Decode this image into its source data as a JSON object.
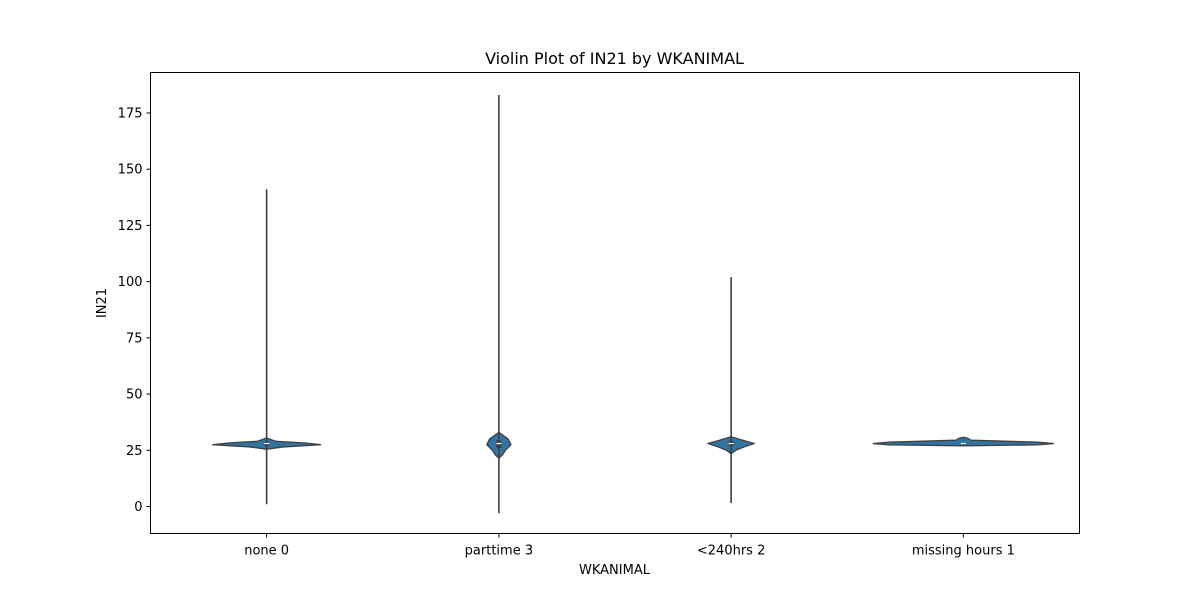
{
  "chart_data": {
    "type": "violin",
    "title": "Violin Plot of IN21 by WKANIMAL",
    "xlabel": "WKANIMAL",
    "ylabel": "IN21",
    "categories": [
      "none 0",
      "parttime 3",
      "<240hrs 2",
      "missing hours 1"
    ],
    "ylim": [
      -12,
      193
    ],
    "yticks": [
      0,
      25,
      50,
      75,
      100,
      125,
      150,
      175
    ],
    "grid": false,
    "color": "#3274a1",
    "outline_color": "#404040",
    "series": [
      {
        "category": "none 0",
        "min": 1,
        "max": 141,
        "q1": 27,
        "median": 28,
        "q3": 28.5,
        "density_profile": [
          {
            "y": 25.5,
            "w": 0.0
          },
          {
            "y": 26.5,
            "w": 0.18
          },
          {
            "y": 27.5,
            "w": 0.58
          },
          {
            "y": 28.3,
            "w": 0.4
          },
          {
            "y": 29.0,
            "w": 0.1
          },
          {
            "y": 30.5,
            "w": 0.0
          }
        ]
      },
      {
        "category": "parttime 3",
        "min": -3,
        "max": 183,
        "q1": 26,
        "median": 28,
        "q3": 29.5,
        "density_profile": [
          {
            "y": 21.5,
            "w": 0.0
          },
          {
            "y": 23.0,
            "w": 0.04
          },
          {
            "y": 25.0,
            "w": 0.07
          },
          {
            "y": 27.5,
            "w": 0.13
          },
          {
            "y": 30.0,
            "w": 0.1
          },
          {
            "y": 31.5,
            "w": 0.05
          },
          {
            "y": 33.0,
            "w": 0.0
          }
        ]
      },
      {
        "category": "<240hrs 2",
        "min": 1.5,
        "max": 102,
        "q1": 27,
        "median": 28,
        "q3": 29,
        "density_profile": [
          {
            "y": 23.5,
            "w": 0.0
          },
          {
            "y": 25.0,
            "w": 0.05
          },
          {
            "y": 26.5,
            "w": 0.14
          },
          {
            "y": 28.0,
            "w": 0.25
          },
          {
            "y": 29.5,
            "w": 0.12
          },
          {
            "y": 31.0,
            "w": 0.0
          }
        ]
      },
      {
        "category": "missing hours 1",
        "min": 28,
        "max": 28,
        "q1": 28,
        "median": 28,
        "q3": 28,
        "density_profile": [
          {
            "y": 27.0,
            "w": 0.0
          },
          {
            "y": 27.4,
            "w": 0.8
          },
          {
            "y": 28.0,
            "w": 0.97
          },
          {
            "y": 28.6,
            "w": 0.8
          },
          {
            "y": 29.5,
            "w": 0.08
          },
          {
            "y": 30.3,
            "w": 0.05
          },
          {
            "y": 30.8,
            "w": 0.0
          }
        ]
      }
    ]
  }
}
